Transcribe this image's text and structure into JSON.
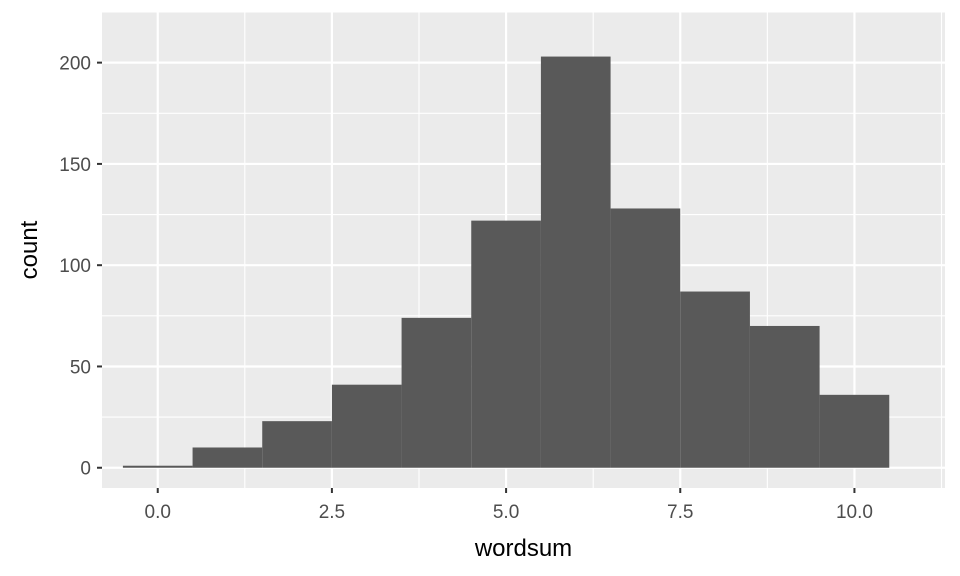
{
  "chart_data": {
    "type": "bar",
    "xlabel": "wordsum",
    "ylabel": "count",
    "xlim": [
      -0.8,
      11.3
    ],
    "ylim": [
      -10,
      225
    ],
    "x_ticks": [
      0.0,
      2.5,
      5.0,
      7.5,
      10.0
    ],
    "x_tick_labels": [
      "0.0",
      "2.5",
      "5.0",
      "7.5",
      "10.0"
    ],
    "y_ticks": [
      0,
      50,
      100,
      150,
      200
    ],
    "y_tick_labels": [
      "0",
      "50",
      "100",
      "150",
      "200"
    ],
    "bins": [
      {
        "x0": -0.5,
        "x1": 0.5,
        "count": 1
      },
      {
        "x0": 0.5,
        "x1": 1.5,
        "count": 10
      },
      {
        "x0": 1.5,
        "x1": 2.5,
        "count": 23
      },
      {
        "x0": 2.5,
        "x1": 3.5,
        "count": 41
      },
      {
        "x0": 3.5,
        "x1": 4.5,
        "count": 74
      },
      {
        "x0": 4.5,
        "x1": 5.5,
        "count": 122
      },
      {
        "x0": 5.5,
        "x1": 6.5,
        "count": 203
      },
      {
        "x0": 6.5,
        "x1": 7.5,
        "count": 128
      },
      {
        "x0": 7.5,
        "x1": 8.5,
        "count": 87
      },
      {
        "x0": 8.5,
        "x1": 9.5,
        "count": 70
      },
      {
        "x0": 9.5,
        "x1": 10.5,
        "count": 36
      }
    ],
    "grid": true,
    "colors": {
      "panel_background": "#ebebeb",
      "grid_major": "#ffffff",
      "bar_fill": "#595959",
      "tick_text": "#4d4d4d",
      "title_text": "#000000"
    }
  }
}
